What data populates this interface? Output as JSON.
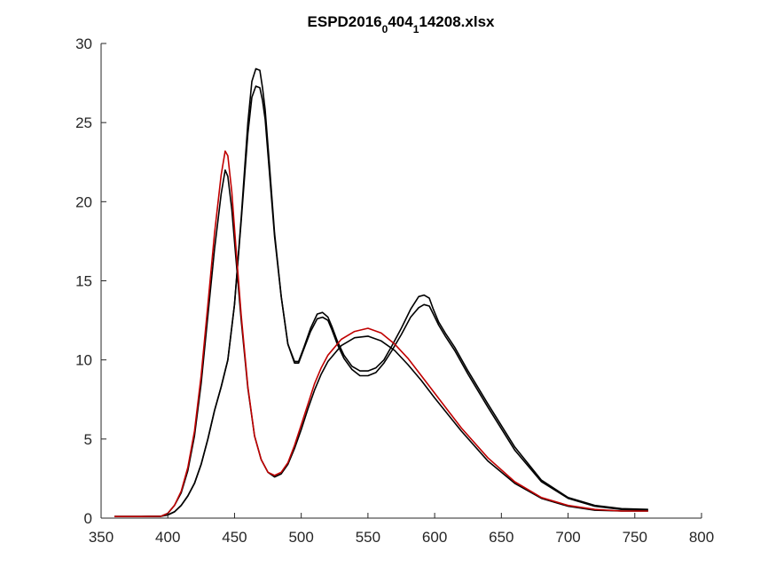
{
  "chart_data": {
    "type": "line",
    "title": {
      "main": "ESPD2016",
      "sub1": "0",
      "mid": "404",
      "sub2": "1",
      "tail": "14208.xlsx"
    },
    "xlabel": "",
    "ylabel": "",
    "xlim": [
      350,
      800
    ],
    "ylim": [
      0,
      30
    ],
    "xticks": [
      350,
      400,
      450,
      500,
      550,
      600,
      650,
      700,
      750,
      800
    ],
    "yticks": [
      0,
      5,
      10,
      15,
      20,
      25,
      30
    ],
    "grid": false,
    "legend": "none",
    "series": [
      {
        "color": "#000000",
        "x": [
          360,
          380,
          395,
          400,
          405,
          410,
          415,
          420,
          425,
          430,
          435,
          440,
          445,
          450,
          455,
          460,
          463,
          466,
          469,
          471,
          473,
          476,
          480,
          485,
          490,
          495,
          498,
          502,
          507,
          512,
          516,
          520,
          523,
          527,
          532,
          538,
          544,
          550,
          556,
          562,
          568,
          575,
          582,
          588,
          592,
          596,
          599,
          603,
          608,
          615,
          625,
          640,
          660,
          680,
          700,
          720,
          740,
          760
        ],
        "y": [
          0.1,
          0.1,
          0.12,
          0.2,
          0.4,
          0.8,
          1.4,
          2.2,
          3.4,
          5.0,
          6.8,
          8.3,
          10.0,
          13.5,
          19.0,
          25.0,
          27.6,
          28.4,
          28.3,
          27.2,
          25.8,
          22.5,
          18.0,
          14.0,
          11.0,
          9.9,
          9.9,
          10.8,
          12.0,
          12.9,
          13.0,
          12.7,
          12.1,
          11.2,
          10.3,
          9.6,
          9.3,
          9.3,
          9.5,
          10.0,
          10.9,
          12.0,
          13.2,
          14.0,
          14.1,
          13.9,
          13.2,
          12.4,
          11.7,
          10.8,
          9.3,
          7.2,
          4.5,
          2.4,
          1.3,
          0.8,
          0.6,
          0.55
        ]
      },
      {
        "color": "#000000",
        "x": [
          360,
          380,
          395,
          400,
          405,
          410,
          415,
          420,
          425,
          430,
          435,
          440,
          445,
          450,
          455,
          460,
          463,
          466,
          469,
          471,
          473,
          476,
          480,
          485,
          490,
          495,
          498,
          502,
          507,
          512,
          516,
          520,
          523,
          527,
          532,
          538,
          544,
          550,
          556,
          562,
          568,
          575,
          582,
          588,
          592,
          596,
          599,
          603,
          608,
          615,
          625,
          640,
          660,
          680,
          700,
          720,
          740,
          760
        ],
        "y": [
          0.1,
          0.1,
          0.12,
          0.2,
          0.4,
          0.8,
          1.4,
          2.2,
          3.4,
          5.0,
          6.8,
          8.3,
          10.0,
          13.5,
          18.8,
          24.3,
          26.6,
          27.3,
          27.2,
          26.4,
          25.2,
          22.0,
          17.8,
          14.0,
          11.0,
          9.8,
          9.8,
          10.7,
          11.8,
          12.6,
          12.7,
          12.5,
          11.9,
          11.0,
          10.1,
          9.4,
          9.0,
          9.0,
          9.2,
          9.8,
          10.6,
          11.6,
          12.7,
          13.3,
          13.5,
          13.4,
          12.9,
          12.2,
          11.5,
          10.6,
          9.1,
          7.0,
          4.3,
          2.3,
          1.25,
          0.75,
          0.55,
          0.5
        ]
      },
      {
        "color": "#000000",
        "x": [
          360,
          380,
          395,
          400,
          405,
          410,
          415,
          420,
          425,
          430,
          435,
          440,
          443,
          445,
          448,
          451,
          455,
          460,
          465,
          470,
          475,
          480,
          485,
          490,
          495,
          500,
          505,
          510,
          515,
          520,
          530,
          540,
          550,
          560,
          570,
          580,
          590,
          600,
          620,
          640,
          660,
          680,
          700,
          720,
          740,
          760
        ],
        "y": [
          0.1,
          0.1,
          0.12,
          0.3,
          0.8,
          1.6,
          3.0,
          5.2,
          8.5,
          12.8,
          17.0,
          20.5,
          22.0,
          21.6,
          19.5,
          16.5,
          12.5,
          8.2,
          5.2,
          3.7,
          2.9,
          2.6,
          2.8,
          3.4,
          4.4,
          5.6,
          6.9,
          8.1,
          9.1,
          9.9,
          10.9,
          11.4,
          11.5,
          11.2,
          10.6,
          9.7,
          8.7,
          7.6,
          5.5,
          3.6,
          2.2,
          1.25,
          0.75,
          0.5,
          0.45,
          0.45
        ]
      },
      {
        "color": "#c00000",
        "x": [
          360,
          380,
          395,
          400,
          405,
          410,
          415,
          420,
          425,
          430,
          435,
          440,
          443,
          445,
          448,
          451,
          455,
          460,
          465,
          470,
          475,
          480,
          485,
          490,
          495,
          500,
          505,
          510,
          515,
          520,
          530,
          540,
          550,
          560,
          570,
          580,
          590,
          600,
          620,
          640,
          660,
          680,
          700,
          720,
          740,
          760
        ],
        "y": [
          0.1,
          0.1,
          0.12,
          0.3,
          0.8,
          1.7,
          3.2,
          5.5,
          9.0,
          13.5,
          18.0,
          21.7,
          23.2,
          22.9,
          20.6,
          17.2,
          12.8,
          8.3,
          5.2,
          3.7,
          2.9,
          2.7,
          2.9,
          3.5,
          4.6,
          5.9,
          7.2,
          8.5,
          9.5,
          10.3,
          11.3,
          11.8,
          12.0,
          11.7,
          11.0,
          10.1,
          9.0,
          7.9,
          5.7,
          3.8,
          2.3,
          1.3,
          0.8,
          0.55,
          0.45,
          0.45
        ]
      }
    ]
  }
}
